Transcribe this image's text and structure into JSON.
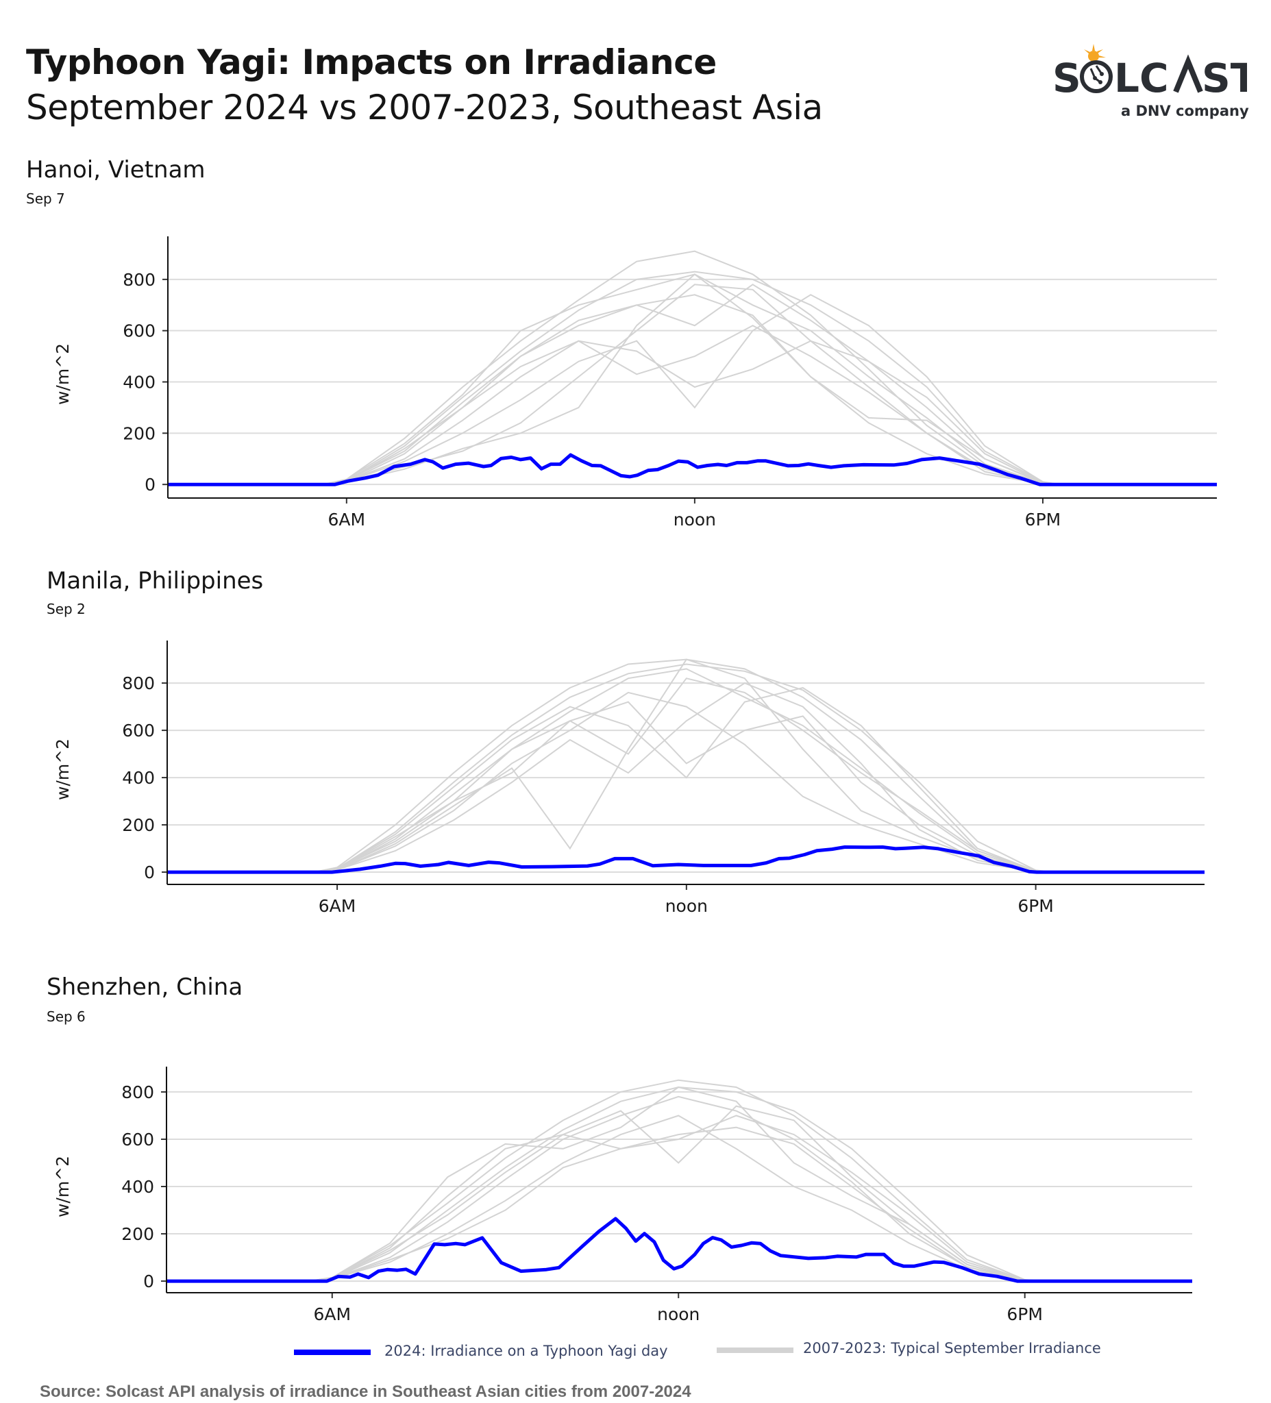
{
  "header": {
    "title": "Typhoon Yagi: Impacts on Irradiance",
    "subtitle": "September 2024 vs 2007-2023, Southeast Asia"
  },
  "logo": {
    "wordmark": "SOLCAST",
    "tagline": "a DNV company",
    "sun_color": "#f5a623",
    "text_color": "#2b2e33"
  },
  "colors": {
    "typhoon_2024": "#0000ff",
    "typical": "#d3d3d3",
    "grid": "#dcdcdc"
  },
  "legend": {
    "blue_label": "2024: Irradiance on a Typhoon Yagi day",
    "gray_label": "2007-2023: Typical September Irradiance"
  },
  "source": "Source: Solcast API analysis of irradiance in Southeast Asian cities from 2007-2024",
  "chart_data": [
    {
      "type": "line",
      "title": "Hanoi, Vietnam",
      "subtitle": "Sep 7",
      "ylabel": "w/m^2",
      "xlabel": "",
      "xlim": [
        2.92,
        21.0
      ],
      "ylim": [
        -53,
        968
      ],
      "yticks": [
        0,
        200,
        400,
        600,
        800
      ],
      "xticks": [
        {
          "x": 6,
          "label": "6AM"
        },
        {
          "x": 12,
          "label": "noon"
        },
        {
          "x": 18,
          "label": "6PM"
        }
      ],
      "grid": "horizontal",
      "typhoon": {
        "x": [
          2.9,
          5.8,
          6.02,
          6.32,
          6.54,
          6.82,
          7.1,
          7.35,
          7.49,
          7.66,
          7.88,
          8.1,
          8.36,
          8.49,
          8.66,
          8.84,
          9.0,
          9.17,
          9.36,
          9.52,
          9.68,
          9.86,
          10.05,
          10.23,
          10.38,
          10.57,
          10.73,
          10.88,
          11.01,
          11.2,
          11.36,
          11.55,
          11.72,
          11.88,
          12.05,
          12.22,
          12.4,
          12.55,
          12.73,
          12.9,
          13.09,
          13.22,
          13.4,
          13.61,
          13.79,
          13.96,
          14.13,
          14.35,
          14.57,
          14.91,
          15.44,
          15.66,
          15.91,
          16.22,
          16.48,
          16.91,
          17.17,
          17.39,
          17.61,
          17.95,
          21.0
        ],
        "y": [
          0,
          0,
          13,
          25,
          36,
          70,
          79,
          97,
          88,
          64,
          79,
          83,
          70,
          74,
          101,
          106,
          97,
          103,
          61,
          79,
          79,
          115,
          92,
          74,
          73,
          52,
          34,
          30,
          36,
          55,
          58,
          74,
          91,
          88,
          67,
          74,
          78,
          74,
          85,
          85,
          92,
          92,
          83,
          73,
          74,
          80,
          74,
          67,
          73,
          77,
          76,
          82,
          97,
          103,
          94,
          79,
          58,
          39,
          25,
          0,
          0
        ]
      },
      "typical": {
        "x": [
          5.6,
          6,
          7,
          8,
          9,
          10,
          11,
          12,
          13,
          14,
          15,
          16,
          17,
          18,
          18.3
        ],
        "series": [
          [
            0,
            20,
            180,
            380,
            560,
            720,
            870,
            910,
            820,
            660,
            450,
            230,
            70,
            5,
            0
          ],
          [
            0,
            15,
            150,
            340,
            520,
            680,
            800,
            830,
            800,
            700,
            560,
            380,
            130,
            10,
            0
          ],
          [
            0,
            10,
            120,
            300,
            500,
            640,
            700,
            620,
            780,
            640,
            480,
            300,
            100,
            8,
            0
          ],
          [
            0,
            20,
            160,
            350,
            600,
            700,
            760,
            820,
            700,
            600,
            420,
            260,
            80,
            5,
            0
          ],
          [
            0,
            10,
            90,
            200,
            330,
            480,
            560,
            300,
            600,
            740,
            620,
            420,
            150,
            10,
            0
          ],
          [
            0,
            12,
            100,
            250,
            420,
            560,
            520,
            380,
            450,
            560,
            480,
            340,
            120,
            6,
            0
          ],
          [
            0,
            8,
            60,
            140,
            200,
            300,
            620,
            820,
            650,
            420,
            240,
            120,
            40,
            3,
            0
          ],
          [
            0,
            15,
            130,
            320,
            500,
            620,
            700,
            740,
            660,
            420,
            260,
            250,
            100,
            5,
            0
          ],
          [
            0,
            10,
            70,
            130,
            240,
            420,
            600,
            780,
            760,
            560,
            380,
            200,
            60,
            4,
            0
          ],
          [
            0,
            12,
            140,
            300,
            460,
            560,
            430,
            500,
            620,
            500,
            360,
            200,
            50,
            3,
            0
          ]
        ]
      }
    },
    {
      "type": "line",
      "title": "Manila, Philippines",
      "subtitle": "Sep 2",
      "ylabel": "w/m^2",
      "xlabel": "",
      "xlim": [
        3.08,
        20.9
      ],
      "ylim": [
        -52,
        980
      ],
      "yticks": [
        0,
        200,
        400,
        600,
        800
      ],
      "xticks": [
        {
          "x": 6,
          "label": "6AM"
        },
        {
          "x": 12,
          "label": "noon"
        },
        {
          "x": 18,
          "label": "6PM"
        }
      ],
      "grid": "horizontal",
      "typhoon": {
        "x": [
          3.0,
          5.91,
          6.39,
          6.74,
          7.0,
          7.17,
          7.43,
          7.74,
          7.91,
          8.26,
          8.6,
          8.78,
          9.17,
          9.69,
          10.3,
          10.51,
          10.77,
          11.08,
          11.42,
          11.86,
          12.29,
          13.11,
          13.37,
          13.59,
          13.77,
          14.03,
          14.24,
          14.5,
          14.72,
          15.07,
          15.37,
          15.59,
          15.76,
          16.07,
          16.33,
          16.72,
          17.02,
          17.28,
          17.58,
          17.89,
          18.02,
          21.0
        ],
        "y": [
          0,
          0,
          12,
          25,
          37,
          36,
          25,
          32,
          41,
          28,
          42,
          39,
          22,
          23,
          26,
          34,
          57,
          57,
          27,
          32,
          28,
          28,
          39,
          57,
          59,
          74,
          91,
          97,
          106,
          105,
          106,
          99,
          101,
          105,
          99,
          81,
          69,
          41,
          25,
          2,
          0,
          0
        ]
      },
      "typical": {
        "x": [
          5.6,
          6,
          7,
          8,
          9,
          10,
          11,
          12,
          13,
          14,
          15,
          16,
          17,
          18,
          18.3
        ],
        "series": [
          [
            0,
            20,
            200,
            420,
            620,
            780,
            880,
            900,
            860,
            740,
            560,
            320,
            90,
            5,
            0
          ],
          [
            0,
            15,
            170,
            380,
            580,
            740,
            840,
            880,
            850,
            770,
            600,
            380,
            130,
            8,
            0
          ],
          [
            0,
            10,
            140,
            330,
            520,
            640,
            500,
            820,
            760,
            600,
            420,
            260,
            90,
            5,
            0
          ],
          [
            0,
            15,
            160,
            360,
            560,
            700,
            620,
            400,
            720,
            780,
            620,
            360,
            100,
            5,
            0
          ],
          [
            0,
            10,
            120,
            280,
            440,
            100,
            520,
            900,
            820,
            520,
            260,
            150,
            60,
            4,
            0
          ],
          [
            0,
            12,
            150,
            300,
            420,
            640,
            720,
            460,
            600,
            660,
            380,
            200,
            70,
            3,
            0
          ],
          [
            0,
            10,
            110,
            260,
            460,
            600,
            760,
            700,
            540,
            320,
            200,
            120,
            40,
            3,
            0
          ],
          [
            0,
            15,
            130,
            300,
            520,
            680,
            820,
            860,
            740,
            620,
            440,
            250,
            80,
            5,
            0
          ],
          [
            0,
            10,
            90,
            220,
            380,
            560,
            420,
            640,
            800,
            700,
            460,
            180,
            50,
            3,
            0
          ]
        ]
      }
    },
    {
      "type": "line",
      "title": "Shenzhen, China",
      "subtitle": "Sep 6",
      "ylabel": "w/m^2",
      "xlabel": "",
      "xlim": [
        3.13,
        20.9
      ],
      "ylim": [
        -49,
        907
      ],
      "yticks": [
        0,
        200,
        400,
        600,
        800
      ],
      "xticks": [
        {
          "x": 6,
          "label": "6AM"
        },
        {
          "x": 12,
          "label": "noon"
        },
        {
          "x": 18,
          "label": "6PM"
        }
      ],
      "grid": "horizontal",
      "typhoon": {
        "x": [
          3.0,
          5.91,
          6.11,
          6.31,
          6.45,
          6.63,
          6.8,
          6.96,
          7.13,
          7.28,
          7.44,
          7.77,
          7.95,
          8.14,
          8.3,
          8.6,
          8.93,
          9.27,
          9.71,
          9.93,
          10.32,
          10.62,
          10.91,
          11.09,
          11.26,
          11.41,
          11.58,
          11.74,
          11.92,
          12.06,
          12.28,
          12.43,
          12.59,
          12.74,
          12.92,
          13.09,
          13.27,
          13.42,
          13.59,
          13.77,
          14.25,
          14.55,
          14.75,
          15.08,
          15.25,
          15.56,
          15.73,
          15.9,
          16.08,
          16.43,
          16.6,
          16.91,
          17.21,
          17.52,
          17.87,
          21.0
        ],
        "y": [
          0,
          0,
          20,
          17,
          30,
          15,
          42,
          49,
          46,
          50,
          30,
          157,
          154,
          159,
          154,
          183,
          78,
          42,
          49,
          57,
          144,
          210,
          264,
          223,
          169,
          201,
          166,
          88,
          52,
          63,
          112,
          159,
          184,
          174,
          144,
          151,
          162,
          159,
          128,
          108,
          96,
          99,
          105,
          102,
          113,
          113,
          76,
          63,
          63,
          81,
          79,
          57,
          30,
          20,
          0,
          0
        ]
      },
      "typical": {
        "x": [
          5.6,
          6,
          7,
          8,
          9,
          10,
          11,
          12,
          13,
          14,
          15,
          16,
          17,
          18,
          18.3
        ],
        "series": [
          [
            0,
            15,
            150,
            330,
            520,
            680,
            800,
            850,
            820,
            700,
            520,
            300,
            90,
            5,
            0
          ],
          [
            0,
            10,
            120,
            300,
            480,
            640,
            760,
            820,
            800,
            720,
            560,
            340,
            110,
            6,
            0
          ],
          [
            0,
            12,
            140,
            360,
            560,
            620,
            560,
            600,
            700,
            620,
            460,
            280,
            80,
            5,
            0
          ],
          [
            0,
            10,
            100,
            250,
            430,
            600,
            700,
            780,
            720,
            600,
            420,
            200,
            60,
            4,
            0
          ],
          [
            0,
            15,
            160,
            440,
            580,
            560,
            650,
            820,
            760,
            500,
            360,
            240,
            70,
            3,
            0
          ],
          [
            0,
            10,
            80,
            200,
            340,
            500,
            620,
            700,
            560,
            400,
            300,
            160,
            50,
            3,
            0
          ],
          [
            0,
            12,
            130,
            280,
            460,
            620,
            720,
            500,
            740,
            680,
            440,
            240,
            70,
            4,
            0
          ],
          [
            0,
            10,
            90,
            180,
            300,
            480,
            560,
            620,
            650,
            580,
            400,
            220,
            60,
            3,
            0
          ]
        ]
      }
    }
  ]
}
